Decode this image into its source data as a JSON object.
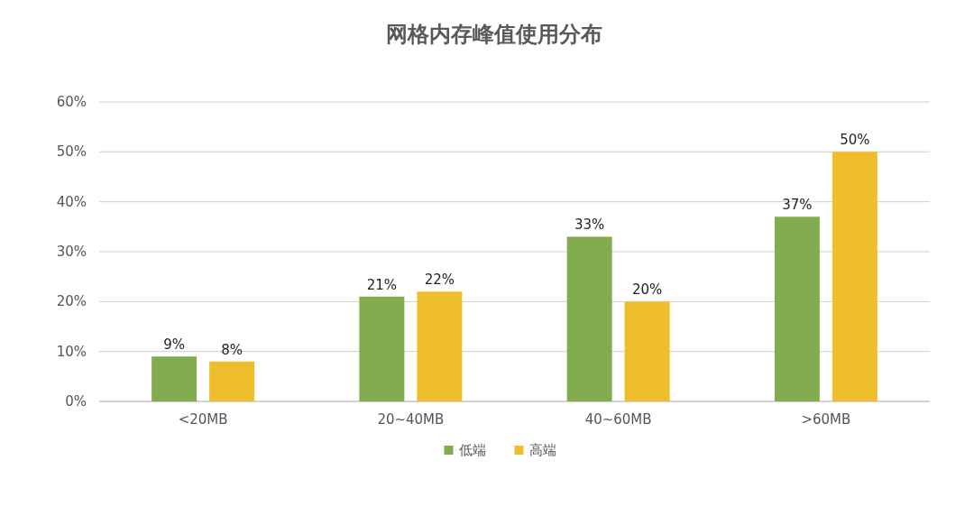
{
  "chart_data": {
    "type": "bar",
    "title": "网格内存峰值使用分布",
    "categories": [
      "<20MB",
      "20~40MB",
      "40~60MB",
      ">60MB"
    ],
    "series": [
      {
        "name": "低端",
        "color": "#82ac4f",
        "values": [
          9,
          21,
          33,
          37
        ],
        "value_labels": [
          "9%",
          "21%",
          "33%",
          "37%"
        ]
      },
      {
        "name": "高端",
        "color": "#efbe2c",
        "values": [
          8,
          22,
          20,
          50
        ],
        "value_labels": [
          "8%",
          "22%",
          "20%",
          "50%"
        ]
      }
    ],
    "ylim": [
      0,
      60
    ],
    "yticks": [
      {
        "value": 0,
        "label": "0%"
      },
      {
        "value": 10,
        "label": "10%"
      },
      {
        "value": 20,
        "label": "20%"
      },
      {
        "value": 30,
        "label": "30%"
      },
      {
        "value": 40,
        "label": "40%"
      },
      {
        "value": 50,
        "label": "50%"
      },
      {
        "value": 60,
        "label": "60%"
      }
    ],
    "grid": "y",
    "legend": "bottom"
  }
}
